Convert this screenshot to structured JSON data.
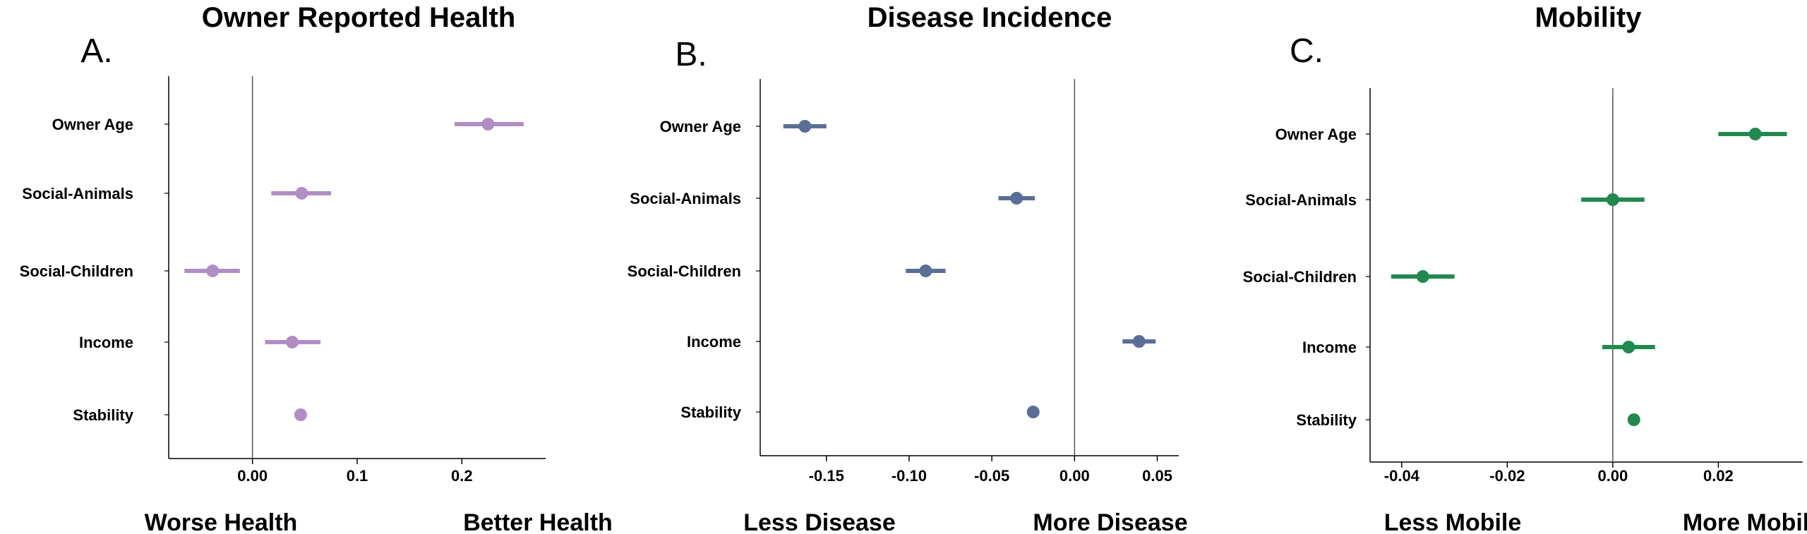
{
  "chart_data": [
    {
      "type": "scatter",
      "panel_label": "A.",
      "title": "Owner Reported Health",
      "color": "#b28dc4",
      "xlabel_left": "Worse Health",
      "xlabel_right": "Better Health",
      "xlim": [
        -0.08,
        0.28
      ],
      "xticks": [
        0.0,
        0.1,
        0.2
      ],
      "xtick_labels": [
        "0.00",
        "0.1",
        "0.2"
      ],
      "categories": [
        "Owner Age",
        "Social-Animals",
        "Social-Children",
        "Income",
        "Stability"
      ],
      "estimates": [
        0.225,
        0.047,
        -0.038,
        0.038,
        0.046
      ],
      "ci_low": [
        0.193,
        0.018,
        -0.065,
        0.012,
        0.046
      ],
      "ci_high": [
        0.259,
        0.075,
        -0.012,
        0.065,
        0.046
      ]
    },
    {
      "type": "scatter",
      "panel_label": "B.",
      "title": "Disease Incidence",
      "color": "#5a6f96",
      "xlabel_left": "Less Disease",
      "xlabel_right": "More Disease",
      "xlim": [
        -0.19,
        0.063
      ],
      "xticks": [
        -0.15,
        -0.1,
        -0.05,
        0.0,
        0.05
      ],
      "xtick_labels": [
        "-0.15",
        "-0.10",
        "-0.05",
        "0.00",
        "0.05"
      ],
      "categories": [
        "Owner Age",
        "Social-Animals",
        "Social-Children",
        "Income",
        "Stability"
      ],
      "estimates": [
        -0.163,
        -0.035,
        -0.09,
        0.039,
        -0.025
      ],
      "ci_low": [
        -0.176,
        -0.046,
        -0.102,
        0.029,
        -0.025
      ],
      "ci_high": [
        -0.15,
        -0.024,
        -0.078,
        0.049,
        -0.025
      ]
    },
    {
      "type": "scatter",
      "panel_label": "C.",
      "title": "Mobility",
      "color": "#21894f",
      "xlabel_left": "Less Mobile",
      "xlabel_right": "More Mobile",
      "xlim": [
        -0.046,
        0.036
      ],
      "xticks": [
        -0.04,
        -0.02,
        0.0,
        0.02
      ],
      "xtick_labels": [
        "-0.04",
        "-0.02",
        "0.00",
        "0.02"
      ],
      "categories": [
        "Owner Age",
        "Social-Animals",
        "Social-Children",
        "Income",
        "Stability"
      ],
      "estimates": [
        0.027,
        0.0,
        -0.036,
        0.003,
        0.004
      ],
      "ci_low": [
        0.02,
        -0.006,
        -0.042,
        -0.002,
        0.004
      ],
      "ci_high": [
        0.033,
        0.006,
        -0.03,
        0.008,
        0.004
      ]
    }
  ]
}
